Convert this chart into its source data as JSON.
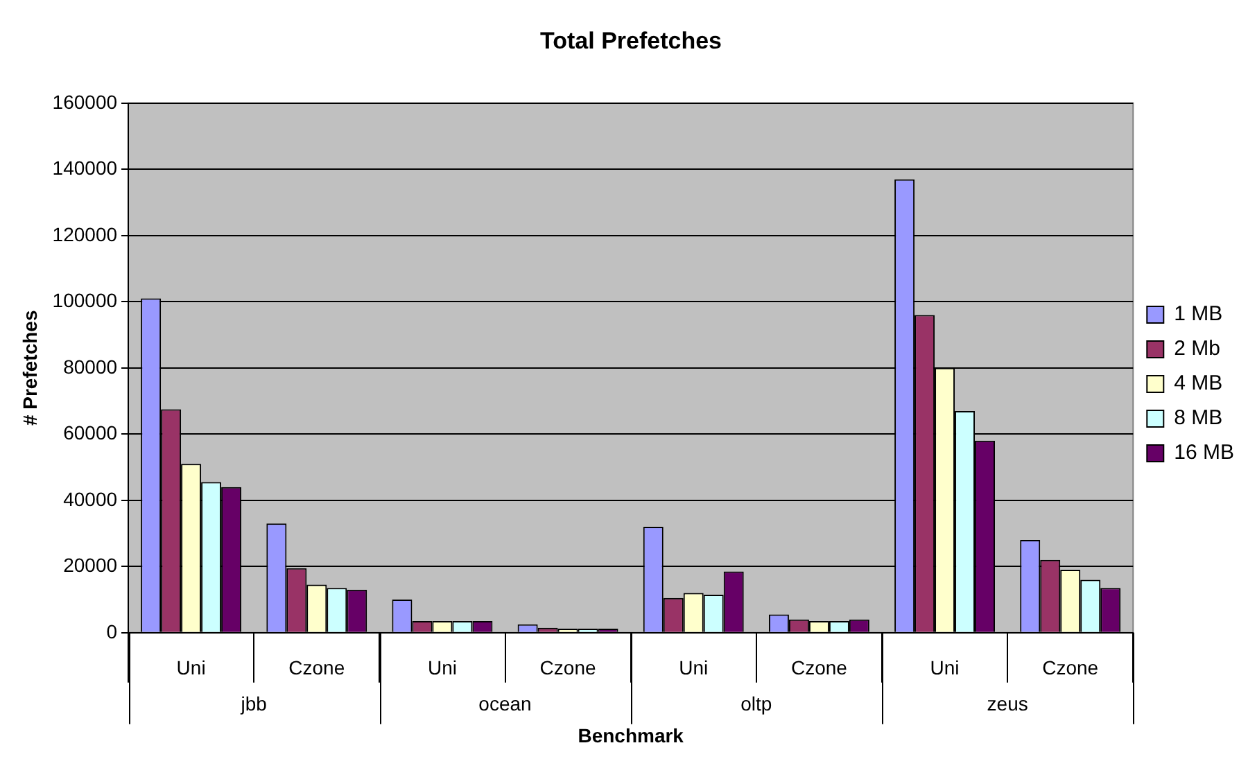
{
  "chart_data": {
    "type": "bar",
    "title": "Total Prefetches",
    "xlabel": "Benchmark",
    "ylabel": "# Prefetches",
    "categories": [
      "Uni",
      "Czone",
      "Uni",
      "Czone",
      "Uni",
      "Czone",
      "Uni",
      "Czone"
    ],
    "annotations": [
      "jbb",
      "ocean",
      "oltp",
      "zeus"
    ],
    "series": [
      {
        "name": "1 MB",
        "color": "#9999ff",
        "values": [
          101000,
          33000,
          10000,
          2500,
          32000,
          5500,
          137000,
          28000
        ]
      },
      {
        "name": "2 Mb",
        "color": "#993366",
        "values": [
          67500,
          19500,
          3500,
          1500,
          10500,
          4000,
          96000,
          22000
        ]
      },
      {
        "name": "4 MB",
        "color": "#ffffcc",
        "values": [
          51000,
          14500,
          3500,
          1200,
          12000,
          3500,
          80000,
          19000
        ]
      },
      {
        "name": "8 MB",
        "color": "#ccffff",
        "values": [
          45500,
          13500,
          3500,
          1200,
          11500,
          3500,
          67000,
          16000
        ]
      },
      {
        "name": "16 MB",
        "color": "#660066",
        "values": [
          44000,
          13000,
          3500,
          1200,
          18500,
          4000,
          58000,
          13500
        ]
      }
    ],
    "ylim": [
      0,
      160000
    ],
    "yticks": [
      0,
      20000,
      40000,
      60000,
      80000,
      100000,
      120000,
      140000,
      160000
    ],
    "grid": "y",
    "legend": "right"
  }
}
